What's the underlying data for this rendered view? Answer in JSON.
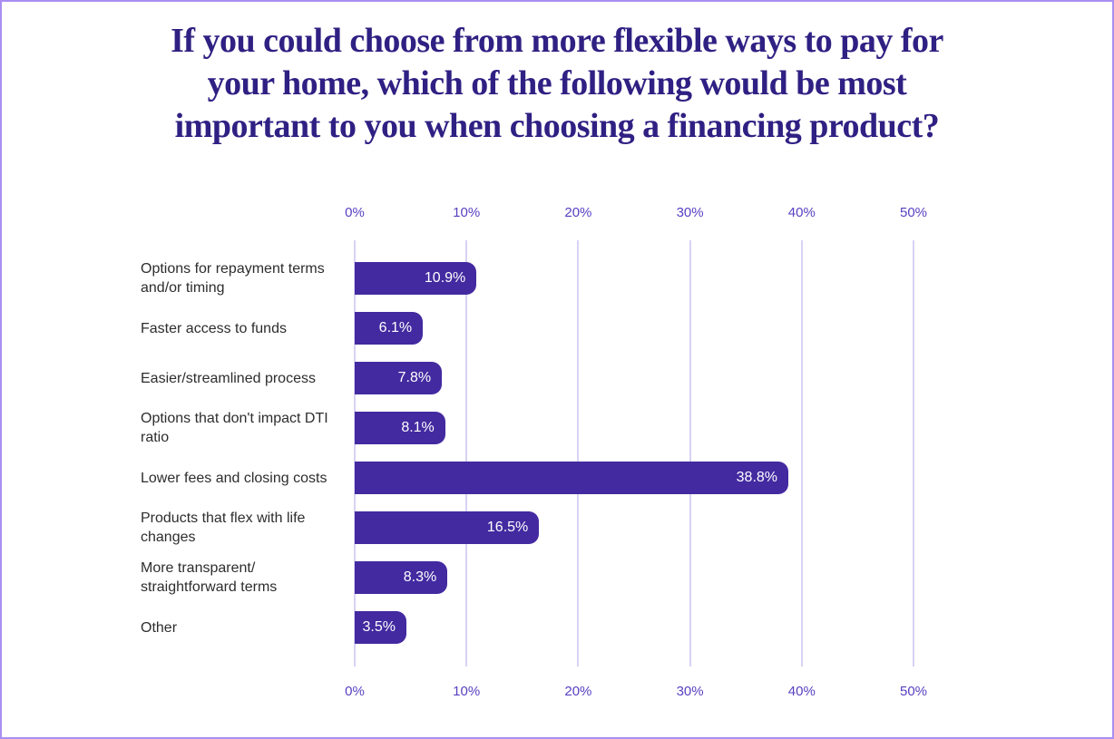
{
  "page": {
    "background": "#FFFFFF",
    "border_color": "#A98FF2"
  },
  "title": {
    "text": "If you could choose from more flexible ways to pay for your home, which of the following would be most important to you when choosing a financing product?",
    "lines": [
      "If you could choose from more flexible ways to pay for",
      "your home, which of the following would be most",
      "important to you when choosing a financing product?"
    ],
    "color": "#2F2083"
  },
  "chart_data": {
    "type": "bar",
    "orientation": "horizontal",
    "title": "If you could choose from more flexible ways to pay for your home, which of the following would be most important to you when choosing a financing product?",
    "categories": [
      "Options for repayment terms and/or timing",
      "Faster access to funds",
      "Easier/streamlined process",
      "Options that don't impact DTI ratio",
      "Lower fees and closing costs",
      "Products that flex with life changes",
      "More transparent/ straightforward terms",
      "Other"
    ],
    "values": [
      10.9,
      6.1,
      7.8,
      8.1,
      38.8,
      16.5,
      8.3,
      3.5
    ],
    "value_labels": [
      "10.9%",
      "6.1%",
      "7.8%",
      "8.1%",
      "38.8%",
      "16.5%",
      "8.3%",
      "3.5%"
    ],
    "x_ticks": [
      "0%",
      "10%",
      "20%",
      "30%",
      "40%",
      "50%"
    ],
    "xlim": [
      0,
      50
    ],
    "xlabel": "",
    "ylabel": "",
    "grid": true,
    "legend": "none",
    "bar_color": "#432AA0",
    "gridline_color": "#D9D2F4",
    "tick_label_color": "#5840C2",
    "category_label_color": "#2D2D2D",
    "value_label_color": "#FFFFFF"
  }
}
